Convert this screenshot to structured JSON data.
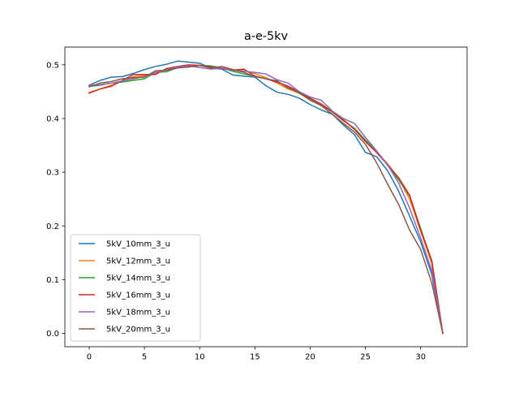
{
  "chart_data": {
    "type": "line",
    "title": "a-e-5kv",
    "xlabel": "",
    "ylabel": "",
    "xlim": [
      -2.2,
      34.2
    ],
    "ylim": [
      -0.025,
      0.533
    ],
    "xticks": [
      0,
      5,
      10,
      15,
      20,
      25,
      30
    ],
    "xtick_labels": [
      "0",
      "5",
      "10",
      "15",
      "20",
      "25",
      "30"
    ],
    "yticks": [
      0.0,
      0.1,
      0.2,
      0.3,
      0.4,
      0.5
    ],
    "ytick_labels": [
      "0.0",
      "0.1",
      "0.2",
      "0.3",
      "0.4",
      "0.5"
    ],
    "grid": false,
    "legend_position": "lower-left",
    "x": [
      0,
      1,
      2,
      3,
      4,
      5,
      6,
      7,
      8,
      9,
      10,
      11,
      12,
      13,
      14,
      15,
      16,
      17,
      18,
      19,
      20,
      21,
      22,
      23,
      24,
      25,
      26,
      27,
      28,
      29,
      30,
      31,
      32
    ],
    "series": [
      {
        "name": "5kV_10mm_3_u",
        "color": "#1f77b4",
        "values": [
          0.462,
          0.471,
          0.477,
          0.478,
          0.484,
          0.491,
          0.497,
          0.501,
          0.507,
          0.505,
          0.503,
          0.494,
          0.492,
          0.481,
          0.479,
          0.477,
          0.461,
          0.449,
          0.445,
          0.438,
          0.426,
          0.416,
          0.408,
          0.388,
          0.37,
          0.337,
          0.329,
          0.303,
          0.265,
          0.218,
          0.17,
          0.11,
          0.0
        ]
      },
      {
        "name": "5kV_12mm_3_u",
        "color": "#ff7f0e",
        "values": [
          0.447,
          0.455,
          0.462,
          0.47,
          0.478,
          0.48,
          0.484,
          0.491,
          0.495,
          0.497,
          0.499,
          0.495,
          0.494,
          0.491,
          0.489,
          0.484,
          0.476,
          0.466,
          0.455,
          0.447,
          0.434,
          0.425,
          0.413,
          0.398,
          0.381,
          0.359,
          0.337,
          0.316,
          0.288,
          0.25,
          0.19,
          0.13,
          0.0
        ]
      },
      {
        "name": "5kV_14mm_3_u",
        "color": "#2ca02c",
        "values": [
          0.46,
          0.462,
          0.466,
          0.468,
          0.471,
          0.474,
          0.486,
          0.487,
          0.495,
          0.496,
          0.499,
          0.498,
          0.494,
          0.488,
          0.483,
          0.479,
          0.474,
          0.468,
          0.46,
          0.447,
          0.437,
          0.426,
          0.412,
          0.396,
          0.382,
          0.36,
          0.339,
          0.313,
          0.286,
          0.256,
          0.195,
          0.133,
          0.0
        ]
      },
      {
        "name": "5kV_16mm_3_u",
        "color": "#d62728",
        "values": [
          0.448,
          0.455,
          0.46,
          0.471,
          0.482,
          0.482,
          0.482,
          0.493,
          0.497,
          0.5,
          0.499,
          0.496,
          0.493,
          0.49,
          0.492,
          0.479,
          0.474,
          0.468,
          0.46,
          0.45,
          0.438,
          0.427,
          0.413,
          0.397,
          0.38,
          0.357,
          0.337,
          0.314,
          0.29,
          0.257,
          0.192,
          0.136,
          0.0
        ]
      },
      {
        "name": "5kV_18mm_3_u",
        "color": "#9467bd",
        "values": [
          0.462,
          0.463,
          0.466,
          0.47,
          0.474,
          0.478,
          0.486,
          0.49,
          0.496,
          0.498,
          0.495,
          0.492,
          0.494,
          0.49,
          0.488,
          0.486,
          0.483,
          0.472,
          0.466,
          0.45,
          0.44,
          0.434,
          0.414,
          0.4,
          0.391,
          0.365,
          0.34,
          0.314,
          0.28,
          0.233,
          0.177,
          0.117,
          0.0
        ]
      },
      {
        "name": "5kV_20mm_3_u",
        "color": "#8c564b",
        "values": [
          0.459,
          0.466,
          0.469,
          0.474,
          0.476,
          0.477,
          0.489,
          0.49,
          0.494,
          0.496,
          0.499,
          0.494,
          0.497,
          0.491,
          0.486,
          0.478,
          0.474,
          0.47,
          0.457,
          0.449,
          0.434,
          0.424,
          0.408,
          0.391,
          0.375,
          0.352,
          0.318,
          0.278,
          0.24,
          0.192,
          0.156,
          0.094,
          0.0
        ]
      }
    ]
  }
}
